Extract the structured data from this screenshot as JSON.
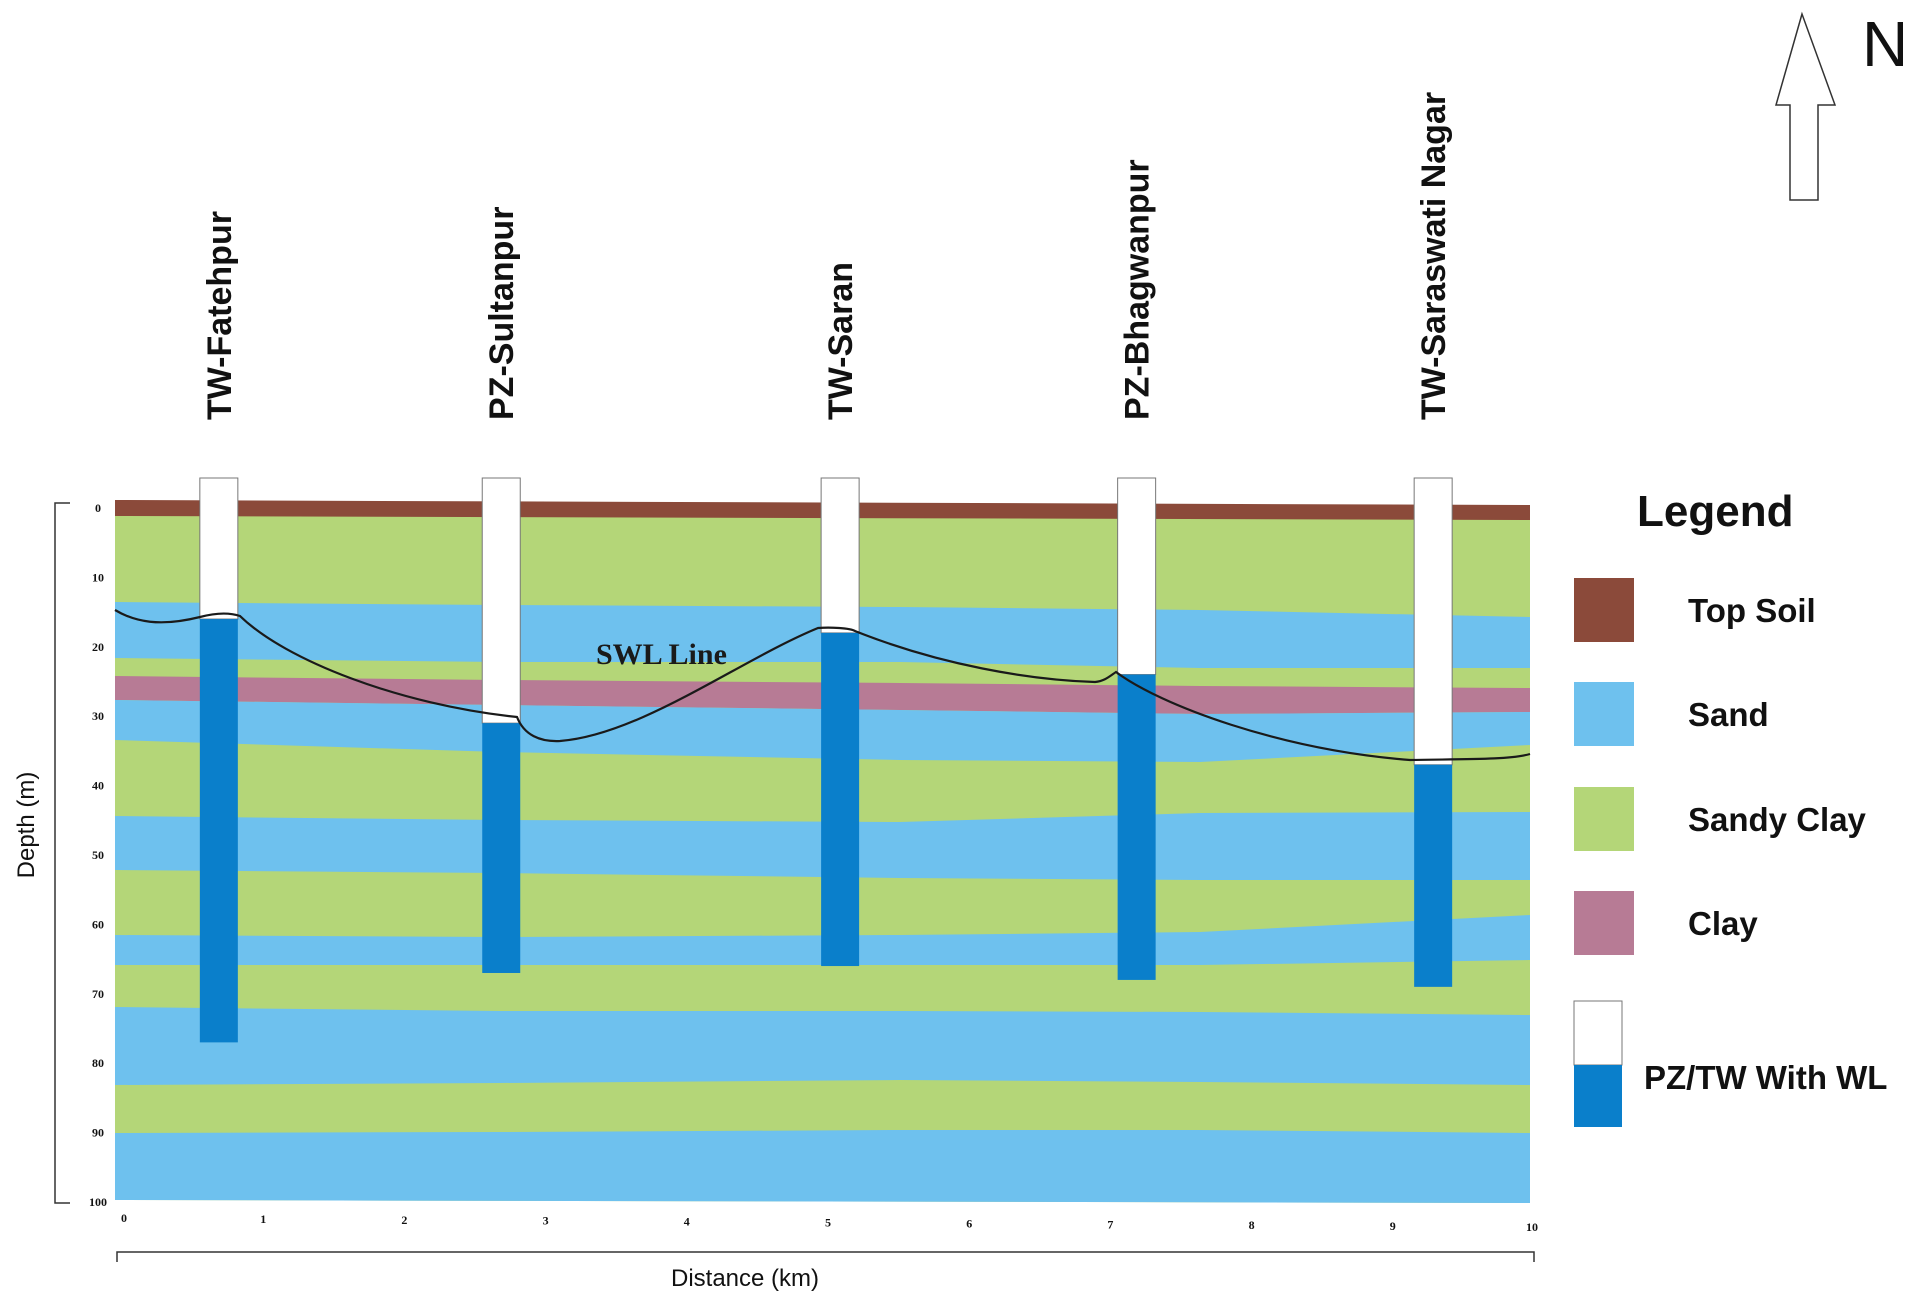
{
  "north": {
    "label": "N"
  },
  "wells": [
    {
      "label": "TW-Fatehpur",
      "distance_km": 0.7,
      "swl_m": 16,
      "bottom_m": 77
    },
    {
      "label": "PZ-Sultanpur",
      "distance_km": 2.7,
      "swl_m": 31,
      "bottom_m": 67
    },
    {
      "label": "TW-Saran",
      "distance_km": 5.1,
      "swl_m": 18,
      "bottom_m": 66
    },
    {
      "label": "PZ-Bhagwanpur",
      "distance_km": 7.2,
      "swl_m": 24,
      "bottom_m": 68
    },
    {
      "label": "TW-Saraswati Nagar",
      "distance_km": 9.3,
      "swl_m": 37,
      "bottom_m": 69
    }
  ],
  "swl_label": "SWL Line",
  "axes": {
    "y_title": "Depth (m)",
    "y_ticks": [
      "0",
      "10",
      "20",
      "30",
      "40",
      "50",
      "60",
      "70",
      "80",
      "90",
      "100"
    ],
    "x_title": "Distance (km)",
    "x_ticks": [
      "0",
      "1",
      "2",
      "3",
      "4",
      "5",
      "6",
      "7",
      "8",
      "9",
      "10"
    ],
    "x_range_km": [
      0,
      10
    ],
    "y_range_m": [
      0,
      100
    ]
  },
  "legend": {
    "title": "Legend",
    "items": [
      {
        "label": "Top Soil",
        "color": "#8B4A3A"
      },
      {
        "label": "Sand",
        "color": "#6EC1EE"
      },
      {
        "label": "Sandy Clay",
        "color": "#B4D678"
      },
      {
        "label": "Clay",
        "color": "#B77B95"
      },
      {
        "label": "PZ/TW With WL",
        "color": "#0A7FCB"
      }
    ]
  },
  "colors": {
    "top_soil": "#8B4A3A",
    "sand": "#6EC1EE",
    "sandy_clay": "#B4D678",
    "clay": "#B77B95",
    "well_water": "#0A7FCB",
    "well_dry": "#FFFFFF"
  }
}
